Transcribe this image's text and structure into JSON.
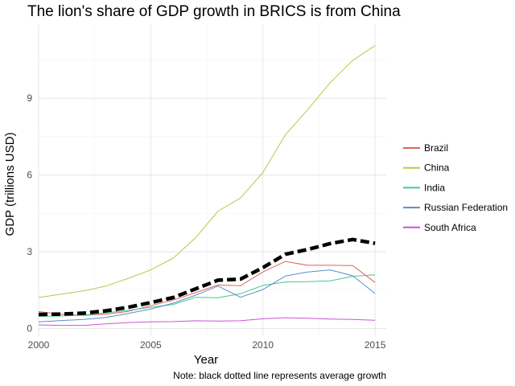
{
  "chart_data": {
    "type": "line",
    "title": "The lion's share of GDP growth in BRICS is from China",
    "xlabel": "Year",
    "ylabel": "GDP (trillions USD)",
    "caption": "Note: black dotted line represents average growth",
    "xlim": [
      2000,
      2015.5
    ],
    "ylim": [
      -0.3,
      11.9
    ],
    "x_ticks": [
      2000,
      2005,
      2010,
      2015
    ],
    "y_ticks": [
      0,
      3,
      6,
      9
    ],
    "grid": true,
    "legend_position": "right",
    "x": [
      2000,
      2001,
      2002,
      2003,
      2004,
      2005,
      2006,
      2007,
      2008,
      2009,
      2010,
      2011,
      2012,
      2013,
      2014,
      2015
    ],
    "series": [
      {
        "name": "Brazil",
        "color": "#E06457",
        "style": "solid",
        "values": [
          0.66,
          0.56,
          0.51,
          0.56,
          0.67,
          0.89,
          1.11,
          1.4,
          1.7,
          1.67,
          2.21,
          2.62,
          2.47,
          2.47,
          2.46,
          1.8
        ]
      },
      {
        "name": "China",
        "color": "#B8C84A",
        "style": "solid",
        "values": [
          1.21,
          1.34,
          1.47,
          1.66,
          1.96,
          2.29,
          2.75,
          3.55,
          4.59,
          5.1,
          6.1,
          7.57,
          8.56,
          9.61,
          10.48,
          11.06
        ]
      },
      {
        "name": "India",
        "color": "#46C98A",
        "style": "solid",
        "values": [
          0.47,
          0.49,
          0.52,
          0.61,
          0.71,
          0.83,
          0.94,
          1.22,
          1.2,
          1.36,
          1.68,
          1.82,
          1.83,
          1.86,
          2.04,
          2.1
        ]
      },
      {
        "name": "Russian Federation",
        "color": "#5B8BD3",
        "style": "solid",
        "values": [
          0.26,
          0.31,
          0.35,
          0.43,
          0.59,
          0.76,
          0.99,
          1.3,
          1.66,
          1.22,
          1.52,
          2.05,
          2.21,
          2.29,
          2.06,
          1.37
        ]
      },
      {
        "name": "South Africa",
        "color": "#C855D3",
        "style": "solid",
        "values": [
          0.14,
          0.12,
          0.12,
          0.18,
          0.23,
          0.26,
          0.27,
          0.3,
          0.29,
          0.3,
          0.38,
          0.42,
          0.4,
          0.37,
          0.35,
          0.32
        ]
      },
      {
        "name": "",
        "color": "#000000",
        "style": "dashed",
        "values": [
          0.55,
          0.56,
          0.6,
          0.69,
          0.83,
          1.01,
          1.21,
          1.55,
          1.89,
          1.93,
          2.38,
          2.9,
          3.09,
          3.32,
          3.48,
          3.33
        ]
      }
    ]
  }
}
